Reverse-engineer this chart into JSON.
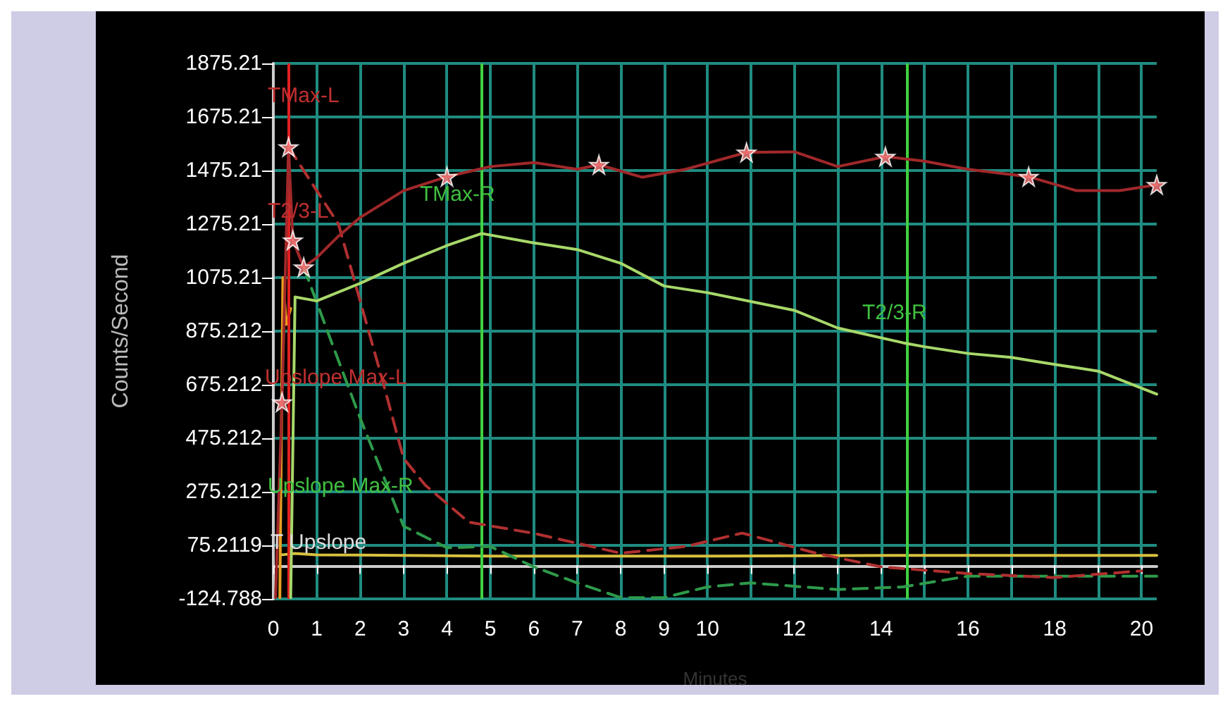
{
  "chart_data": {
    "type": "line",
    "xlabel": "Minutes",
    "ylabel": "Counts/Second",
    "xlim": [
      0,
      20.35
    ],
    "ylim": [
      -124.788,
      1875.21
    ],
    "xticks": [
      0,
      1,
      2,
      3,
      4,
      5,
      6,
      7,
      8,
      9,
      10,
      {
        "value": 11,
        "label": null
      },
      12,
      {
        "value": 13,
        "label": null
      },
      14,
      {
        "value": 15,
        "label": null
      },
      16,
      {
        "value": 17,
        "label": null
      },
      18,
      {
        "value": 19,
        "label": null
      },
      20
    ],
    "yticks": [
      -124.788,
      75.2119,
      275.212,
      475.212,
      675.212,
      875.212,
      1075.21,
      1275.21,
      1475.21,
      1675.21,
      1875.21
    ],
    "grid": true,
    "marker": "none",
    "series": [
      {
        "color": "#e8a020",
        "x": [
          0.15,
          0.22,
          0.3,
          0.4
        ],
        "values": [
          -120,
          1075,
          900,
          960
        ]
      },
      {
        "color": "#d8c040",
        "x": [
          0.2,
          0.5,
          1,
          5,
          10,
          15,
          20.35
        ],
        "values": [
          40,
          45,
          40,
          35,
          35,
          38,
          38
        ]
      },
      {
        "color": "#2e9a4a",
        "line_style": "dashed",
        "x": [
          0.7,
          1.3,
          2,
          3,
          4,
          5,
          6,
          7,
          8,
          9,
          10,
          11,
          13,
          14.5,
          16,
          18,
          20.35
        ],
        "values": [
          1114,
          852,
          550,
          147,
          66,
          71,
          -5,
          -65,
          -120,
          -120,
          -80,
          -65,
          -90,
          -80,
          -40,
          -40,
          -40
        ]
      },
      {
        "color": "#b03030",
        "line_style": "dashed",
        "x": [
          0.35,
          1,
          1.5,
          2,
          2.5,
          3,
          3.5,
          4.5,
          6,
          8,
          9.5,
          10.8,
          12.5,
          14,
          16,
          18,
          20
        ],
        "values": [
          1563,
          1400,
          1275,
          988,
          700,
          400,
          300,
          162,
          120,
          46,
          71,
          121,
          46,
          -5,
          -30,
          -45,
          -20
        ]
      },
      {
        "color": "#a8d86a",
        "x": [
          0.4,
          0.5,
          1,
          2,
          3,
          4,
          4.8,
          6,
          7,
          8,
          9,
          10,
          12,
          13,
          14.5,
          15,
          16,
          17,
          18,
          19,
          20.35
        ],
        "values": [
          -120,
          1003,
          988,
          1054,
          1129,
          1195,
          1240,
          1205,
          1180,
          1129,
          1044,
          1019,
          953,
          887,
          832,
          817,
          792,
          777,
          751,
          726,
          640
        ]
      },
      {
        "color": "#a0282a",
        "x": [
          0.05,
          0.2,
          0.35,
          0.45,
          0.7,
          1,
          1.5,
          2,
          3,
          4,
          5,
          6,
          7,
          7.5,
          8.5,
          9.5,
          10.9,
          12,
          13,
          14.1,
          15,
          16,
          17.4,
          18.5,
          19.5,
          20.35
        ],
        "values": [
          -120,
          610,
          1563,
          1215,
          1114,
          1150,
          1230,
          1300,
          1400,
          1452,
          1490,
          1505,
          1480,
          1497,
          1450,
          1480,
          1543,
          1545,
          1490,
          1527,
          1510,
          1480,
          1452,
          1400,
          1400,
          1422
        ]
      },
      {
        "type": "scatter",
        "marker": "star",
        "color": "#ff8080",
        "x": [
          0.2,
          0.35,
          0.45,
          0.7,
          4,
          7.5,
          10.9,
          14.1,
          17.4,
          20.35
        ],
        "values": [
          610,
          1563,
          1215,
          1114,
          1452,
          1497,
          1543,
          1527,
          1452,
          1422
        ]
      }
    ],
    "ref_lines": [
      {
        "axis": "x",
        "value": 0.35,
        "color": "#e02020"
      },
      {
        "axis": "x",
        "value": 4.8,
        "color": "#40d040"
      },
      {
        "axis": "x",
        "value": 14.6,
        "color": "#40d040"
      }
    ],
    "annotations": [
      "TMax-L",
      "T2/3-L",
      "Upslope Max-L",
      "TMax-R",
      "T2/3-R",
      "Upslope Max-R",
      "T Upslope"
    ]
  }
}
